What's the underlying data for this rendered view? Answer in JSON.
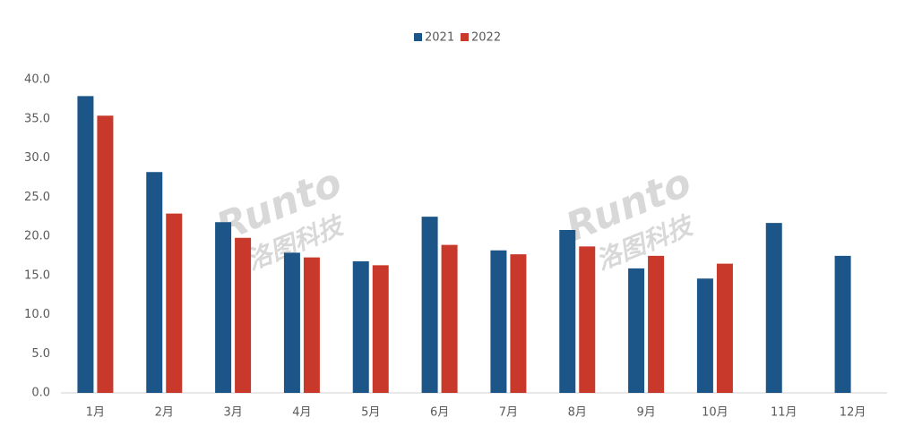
{
  "chart_data": {
    "type": "bar",
    "categories": [
      "1月",
      "2月",
      "3月",
      "4月",
      "5月",
      "6月",
      "7月",
      "8月",
      "9月",
      "10月",
      "11月",
      "12月"
    ],
    "series": [
      {
        "name": "2021",
        "color": "#1c5689",
        "values": [
          37.9,
          28.2,
          21.8,
          17.9,
          16.8,
          22.5,
          18.2,
          20.8,
          15.9,
          14.6,
          21.7,
          17.5
        ]
      },
      {
        "name": "2022",
        "color": "#c9392b",
        "values": [
          35.4,
          22.9,
          19.8,
          17.3,
          16.3,
          18.9,
          17.7,
          18.7,
          17.5,
          16.5,
          null,
          null
        ]
      }
    ],
    "ylim": [
      0,
      40
    ],
    "yticks": [
      {
        "value": 0,
        "label": "0.0"
      },
      {
        "value": 5,
        "label": "5.0"
      },
      {
        "value": 10,
        "label": "10.0"
      },
      {
        "value": 15,
        "label": "15.0"
      },
      {
        "value": 20,
        "label": "20.0"
      },
      {
        "value": 25,
        "label": "25.0"
      },
      {
        "value": 30,
        "label": "30.0"
      },
      {
        "value": 35,
        "label": "35.0"
      },
      {
        "value": 40,
        "label": "40.0"
      }
    ],
    "grid": false,
    "legend": "top",
    "watermark": [
      "Runto",
      "洛图科技"
    ]
  }
}
